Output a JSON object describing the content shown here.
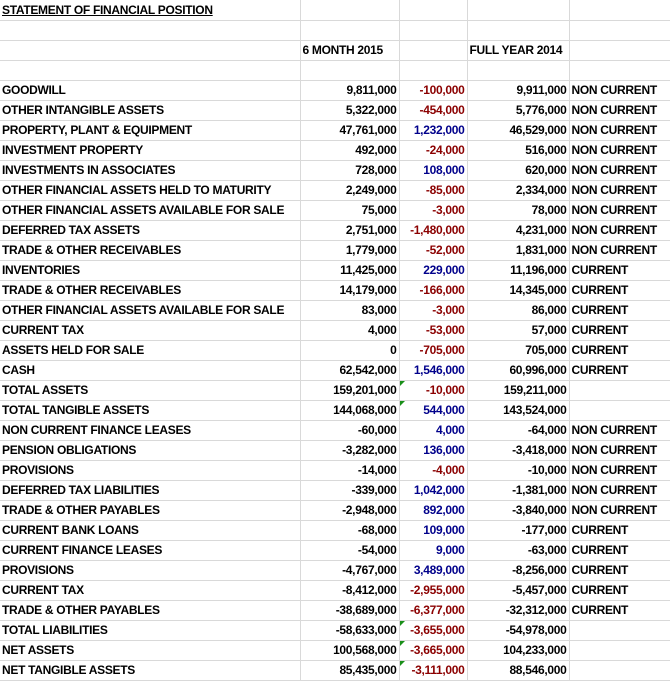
{
  "sheet": {
    "title": "STATEMENT OF FINANCIAL POSITION",
    "header_period_1": "6 MONTH 2015",
    "header_period_2": "FULL YEAR 2014"
  },
  "rows": [
    {
      "label": "GOODWILL",
      "h2015": "9,811,000",
      "change": "-100,000",
      "fy2014": "9,911,000",
      "classification": "NON CURRENT",
      "change_sign": "neg",
      "flag": false
    },
    {
      "label": "OTHER INTANGIBLE ASSETS",
      "h2015": "5,322,000",
      "change": "-454,000",
      "fy2014": "5,776,000",
      "classification": "NON CURRENT",
      "change_sign": "neg",
      "flag": false
    },
    {
      "label": "PROPERTY, PLANT & EQUIPMENT",
      "h2015": "47,761,000",
      "change": "1,232,000",
      "fy2014": "46,529,000",
      "classification": "NON CURRENT",
      "change_sign": "pos",
      "flag": false
    },
    {
      "label": "INVESTMENT PROPERTY",
      "h2015": "492,000",
      "change": "-24,000",
      "fy2014": "516,000",
      "classification": "NON CURRENT",
      "change_sign": "neg",
      "flag": false
    },
    {
      "label": "INVESTMENTS IN ASSOCIATES",
      "h2015": "728,000",
      "change": "108,000",
      "fy2014": "620,000",
      "classification": "NON CURRENT",
      "change_sign": "pos",
      "flag": false
    },
    {
      "label": "OTHER FINANCIAL ASSETS HELD TO MATURITY",
      "h2015": "2,249,000",
      "change": "-85,000",
      "fy2014": "2,334,000",
      "classification": "NON CURRENT",
      "change_sign": "neg",
      "flag": false
    },
    {
      "label": "OTHER FINANCIAL ASSETS AVAILABLE FOR SALE",
      "h2015": "75,000",
      "change": "-3,000",
      "fy2014": "78,000",
      "classification": "NON CURRENT",
      "change_sign": "neg",
      "flag": false
    },
    {
      "label": "DEFERRED TAX ASSETS",
      "h2015": "2,751,000",
      "change": "-1,480,000",
      "fy2014": "4,231,000",
      "classification": "NON CURRENT",
      "change_sign": "neg",
      "flag": false
    },
    {
      "label": "TRADE & OTHER RECEIVABLES",
      "h2015": "1,779,000",
      "change": "-52,000",
      "fy2014": "1,831,000",
      "classification": "NON CURRENT",
      "change_sign": "neg",
      "flag": false
    },
    {
      "label": "INVENTORIES",
      "h2015": "11,425,000",
      "change": "229,000",
      "fy2014": "11,196,000",
      "classification": "CURRENT",
      "change_sign": "pos",
      "flag": false
    },
    {
      "label": "TRADE & OTHER RECEIVABLES",
      "h2015": "14,179,000",
      "change": "-166,000",
      "fy2014": "14,345,000",
      "classification": "CURRENT",
      "change_sign": "neg",
      "flag": false
    },
    {
      "label": "OTHER FINANCIAL ASSETS AVAILABLE FOR SALE",
      "h2015": "83,000",
      "change": "-3,000",
      "fy2014": "86,000",
      "classification": "CURRENT",
      "change_sign": "neg",
      "flag": false
    },
    {
      "label": "CURRENT TAX",
      "h2015": "4,000",
      "change": "-53,000",
      "fy2014": "57,000",
      "classification": "CURRENT",
      "change_sign": "neg",
      "flag": false
    },
    {
      "label": "ASSETS HELD FOR SALE",
      "h2015": "0",
      "change": "-705,000",
      "fy2014": "705,000",
      "classification": "CURRENT",
      "change_sign": "neg",
      "flag": false
    },
    {
      "label": "CASH",
      "h2015": "62,542,000",
      "change": "1,546,000",
      "fy2014": "60,996,000",
      "classification": "CURRENT",
      "change_sign": "pos",
      "flag": false
    },
    {
      "label": "TOTAL ASSETS",
      "h2015": "159,201,000",
      "change": "-10,000",
      "fy2014": "159,211,000",
      "classification": "",
      "change_sign": "neg",
      "flag": true
    },
    {
      "label": "TOTAL TANGIBLE ASSETS",
      "h2015": "144,068,000",
      "change": "544,000",
      "fy2014": "143,524,000",
      "classification": "",
      "change_sign": "pos",
      "flag": true
    },
    {
      "label": "NON CURRENT FINANCE LEASES",
      "h2015": "-60,000",
      "change": "4,000",
      "fy2014": "-64,000",
      "classification": "NON CURRENT",
      "change_sign": "pos",
      "flag": false
    },
    {
      "label": "PENSION OBLIGATIONS",
      "h2015": "-3,282,000",
      "change": "136,000",
      "fy2014": "-3,418,000",
      "classification": "NON CURRENT",
      "change_sign": "pos",
      "flag": false
    },
    {
      "label": "PROVISIONS",
      "h2015": "-14,000",
      "change": "-4,000",
      "fy2014": "-10,000",
      "classification": "NON CURRENT",
      "change_sign": "neg",
      "flag": false
    },
    {
      "label": "DEFERRED TAX LIABILITIES",
      "h2015": "-339,000",
      "change": "1,042,000",
      "fy2014": "-1,381,000",
      "classification": "NON CURRENT",
      "change_sign": "pos",
      "flag": false
    },
    {
      "label": "TRADE & OTHER PAYABLES",
      "h2015": "-2,948,000",
      "change": "892,000",
      "fy2014": "-3,840,000",
      "classification": "NON CURRENT",
      "change_sign": "pos",
      "flag": false
    },
    {
      "label": "CURRENT BANK LOANS",
      "h2015": "-68,000",
      "change": "109,000",
      "fy2014": "-177,000",
      "classification": "CURRENT",
      "change_sign": "pos",
      "flag": false
    },
    {
      "label": "CURRENT FINANCE LEASES",
      "h2015": "-54,000",
      "change": "9,000",
      "fy2014": "-63,000",
      "classification": "CURRENT",
      "change_sign": "pos",
      "flag": false
    },
    {
      "label": "PROVISIONS",
      "h2015": "-4,767,000",
      "change": "3,489,000",
      "fy2014": "-8,256,000",
      "classification": "CURRENT",
      "change_sign": "pos",
      "flag": false
    },
    {
      "label": "CURRENT TAX",
      "h2015": "-8,412,000",
      "change": "-2,955,000",
      "fy2014": "-5,457,000",
      "classification": "CURRENT",
      "change_sign": "neg",
      "flag": false
    },
    {
      "label": "TRADE & OTHER PAYABLES",
      "h2015": "-38,689,000",
      "change": "-6,377,000",
      "fy2014": "-32,312,000",
      "classification": "CURRENT",
      "change_sign": "neg",
      "flag": false
    },
    {
      "label": "TOTAL LIABILITIES",
      "h2015": "-58,633,000",
      "change": "-3,655,000",
      "fy2014": "-54,978,000",
      "classification": "",
      "change_sign": "neg",
      "flag": true
    },
    {
      "label": "NET ASSETS",
      "h2015": "100,568,000",
      "change": "-3,665,000",
      "fy2014": "104,233,000",
      "classification": "",
      "change_sign": "neg",
      "flag": true
    },
    {
      "label": "NET TANGIBLE ASSETS",
      "h2015": "85,435,000",
      "change": "-3,111,000",
      "fy2014": "88,546,000",
      "classification": "",
      "change_sign": "neg",
      "flag": true
    }
  ],
  "colors": {
    "negative_change": "#8b0000",
    "positive_change": "#00008b",
    "gridline": "#d9d9d9",
    "formula_flag": "#1a8f1a"
  }
}
